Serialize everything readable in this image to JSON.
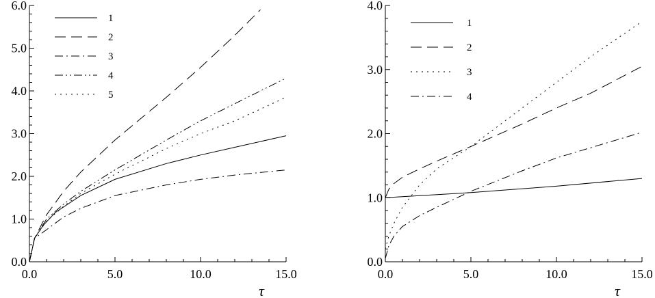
{
  "chart_data": [
    {
      "type": "line",
      "xlabel": "τ",
      "ylabel": "",
      "xlim": [
        0,
        15
      ],
      "ylim": [
        0,
        6
      ],
      "x_ticks": [
        "0.0",
        "5.0",
        "10.0",
        "15.0"
      ],
      "y_ticks": [
        "0.0",
        "1.0",
        "2.0",
        "3.0",
        "4.0",
        "5.0",
        "6.0"
      ],
      "grid": false,
      "legend_position": "top-left",
      "series": [
        {
          "name": "1",
          "dash": "solid",
          "x": [
            0,
            0.3,
            0.8,
            1.5,
            3,
            5,
            8,
            10,
            12,
            15
          ],
          "y": [
            0,
            0.55,
            0.85,
            1.15,
            1.55,
            1.93,
            2.3,
            2.5,
            2.68,
            2.95
          ]
        },
        {
          "name": "2",
          "dash": "long-dash",
          "x": [
            0,
            0.3,
            1,
            2,
            3,
            5,
            8,
            10,
            12,
            13.5
          ],
          "y": [
            0,
            0.55,
            1.1,
            1.65,
            2.1,
            2.85,
            3.85,
            4.55,
            5.3,
            5.9
          ]
        },
        {
          "name": "3",
          "dash": "dash-dot",
          "x": [
            0,
            0.3,
            1,
            2,
            3,
            5,
            8,
            10,
            12,
            15
          ],
          "y": [
            0,
            0.55,
            0.75,
            1.05,
            1.25,
            1.55,
            1.8,
            1.93,
            2.03,
            2.15
          ]
        },
        {
          "name": "4",
          "dash": "dash-dot-dot",
          "x": [
            0,
            0.3,
            1,
            2,
            3,
            5,
            8,
            10,
            12,
            15
          ],
          "y": [
            0,
            0.55,
            1.0,
            1.35,
            1.65,
            2.15,
            2.85,
            3.3,
            3.7,
            4.3
          ]
        },
        {
          "name": "5",
          "dash": "dotted",
          "x": [
            0,
            0.3,
            1,
            2,
            3,
            5,
            8,
            10,
            12,
            15
          ],
          "y": [
            0,
            0.55,
            0.95,
            1.3,
            1.6,
            2.05,
            2.65,
            3.0,
            3.3,
            3.85
          ]
        }
      ]
    },
    {
      "type": "line",
      "xlabel": "τ",
      "ylabel": "",
      "xlim": [
        0,
        15
      ],
      "ylim": [
        0,
        4
      ],
      "x_ticks": [
        "0.0",
        "5.0",
        "10.0",
        "15.0"
      ],
      "y_ticks": [
        "0.0",
        "1.0",
        "2.0",
        "3.0",
        "4.0"
      ],
      "grid": false,
      "legend_position": "top-left",
      "series": [
        {
          "name": "1",
          "dash": "solid",
          "x": [
            0,
            5,
            10,
            15
          ],
          "y": [
            1.0,
            1.08,
            1.18,
            1.3
          ]
        },
        {
          "name": "2",
          "dash": "long-dash",
          "x": [
            0,
            0.2,
            0.5,
            1,
            2,
            3,
            5,
            8,
            10,
            12,
            15
          ],
          "y": [
            1.0,
            1.13,
            1.22,
            1.32,
            1.45,
            1.57,
            1.8,
            2.15,
            2.4,
            2.63,
            3.05
          ]
        },
        {
          "name": "3",
          "dash": "dotted",
          "x": [
            0,
            0.2,
            0.5,
            1,
            2,
            3,
            5,
            8,
            10,
            12,
            15
          ],
          "y": [
            0.2,
            0.4,
            0.6,
            0.85,
            1.2,
            1.45,
            1.8,
            2.4,
            2.8,
            3.2,
            3.75
          ]
        },
        {
          "name": "4",
          "dash": "dash-dot",
          "x": [
            0,
            0.2,
            0.5,
            1,
            2,
            3,
            5,
            8,
            10,
            12,
            15
          ],
          "y": [
            0.05,
            0.25,
            0.4,
            0.55,
            0.72,
            0.85,
            1.1,
            1.42,
            1.62,
            1.78,
            2.02
          ]
        }
      ]
    }
  ]
}
